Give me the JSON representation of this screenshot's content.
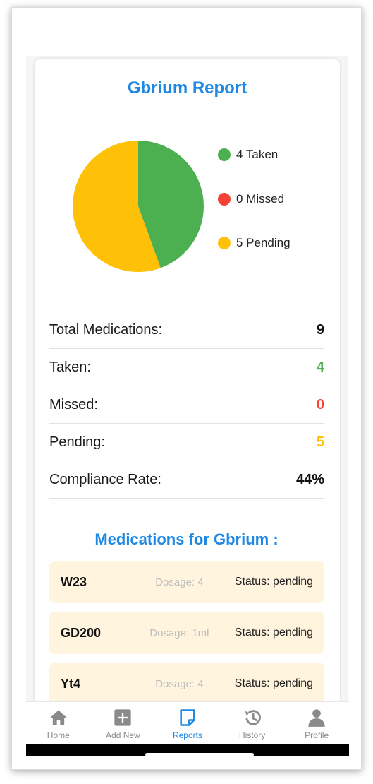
{
  "report": {
    "title": "Gbrium  Report"
  },
  "chart_data": {
    "type": "pie",
    "categories": [
      "Taken",
      "Missed",
      "Pending"
    ],
    "values": [
      4,
      0,
      5
    ],
    "colors": [
      "#4caf50",
      "#f44336",
      "#ffc107"
    ],
    "legend": [
      "4 Taken",
      "0 Missed",
      "5 Pending"
    ],
    "legend_position": "right"
  },
  "stats": {
    "total_label": "Total Medications:",
    "total_value": "9",
    "taken_label": "Taken:",
    "taken_value": "4",
    "missed_label": "Missed:",
    "missed_value": "0",
    "pending_label": "Pending:",
    "pending_value": "5",
    "compliance_label": "Compliance Rate:",
    "compliance_value": "44%"
  },
  "colors": {
    "accent": "#1e88e5",
    "taken": "#4caf50",
    "missed": "#f44336",
    "pending": "#ffc107",
    "card_item": "#fff4de"
  },
  "medications": {
    "title": "Medications for Gbrium :",
    "items": [
      {
        "name": "W23",
        "dosage": "Dosage: 4",
        "status": "Status: pending"
      },
      {
        "name": "GD200",
        "dosage": "Dosage: 1ml",
        "status": "Status: pending"
      },
      {
        "name": "Yt4",
        "dosage": "Dosage: 4",
        "status": "Status: pending"
      }
    ]
  },
  "nav": {
    "items": [
      {
        "label": "Home",
        "icon": "home-icon"
      },
      {
        "label": "Add New",
        "icon": "add-icon"
      },
      {
        "label": "Reports",
        "icon": "reports-icon",
        "active": true
      },
      {
        "label": "History",
        "icon": "history-icon"
      },
      {
        "label": "Profile",
        "icon": "profile-icon"
      }
    ]
  }
}
